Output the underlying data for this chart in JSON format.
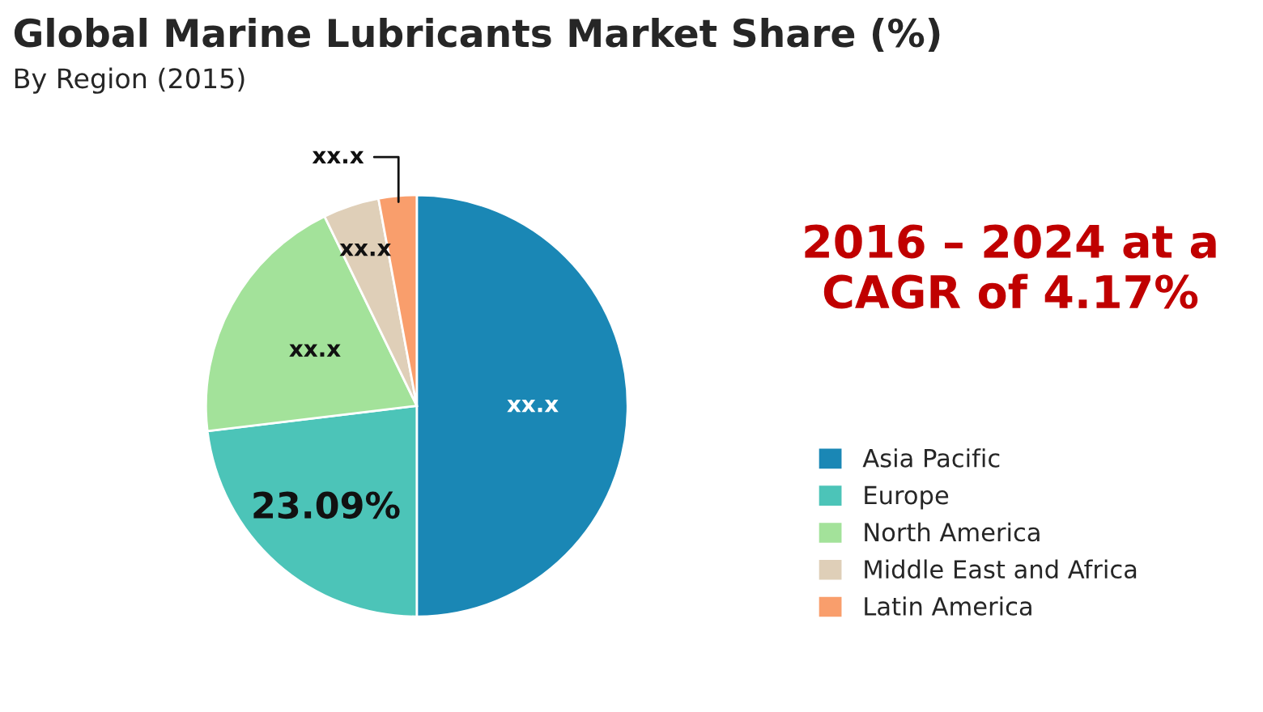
{
  "chart_data": {
    "type": "pie",
    "title": "Global Marine Lubricants Market Share (%)",
    "subtitle": "By Region (2015)",
    "categories": [
      "Asia Pacific",
      "Europe",
      "North America",
      "Middle East and Africa",
      "Latin America"
    ],
    "values": [
      50.0,
      23.09,
      19.7,
      4.3,
      2.91
    ],
    "colors": [
      "#1a87b5",
      "#4cc4b8",
      "#a3e29a",
      "#dfcfb8",
      "#f99e6c"
    ],
    "value_labels": [
      "xx.x",
      "23.09%",
      "xx.x",
      "xx.x",
      "xx.x"
    ],
    "annotations": [
      "2016 – 2024 at a CAGR of 4.17%"
    ],
    "legend": "right"
  }
}
